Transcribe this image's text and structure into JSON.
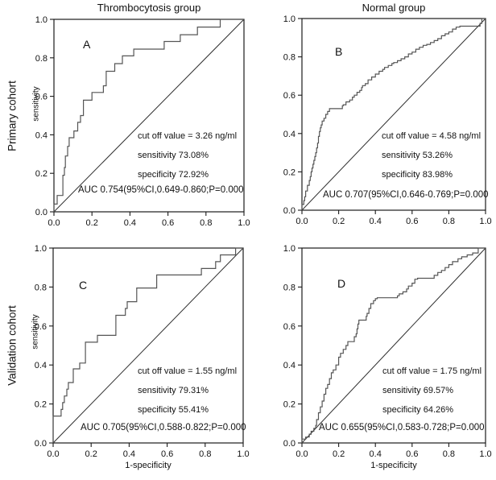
{
  "figure": {
    "column_titles": [
      "Thrombocytosis group",
      "Normal group"
    ],
    "row_labels": [
      "Primary cohort",
      "Validation cohort"
    ],
    "colors": {
      "curve": "#555555",
      "reference_line": "#2e2e2e",
      "axis": "#1a1a1a",
      "text": "#111111",
      "background": "#ffffff"
    }
  },
  "chart_data": [
    {
      "type": "line",
      "panel_label": "A",
      "group": "Thrombocytosis group",
      "cohort": "Primary cohort",
      "xlabel": "",
      "ylabel": "sensitivity",
      "xlim": [
        0,
        1
      ],
      "ylim": [
        0,
        1
      ],
      "xticks": [
        "0.0",
        "0.2",
        "0.4",
        "0.6",
        "0.8",
        "1.0"
      ],
      "yticks": [
        "0.0",
        "0.2",
        "0.4",
        "0.6",
        "0.8",
        "1.0"
      ],
      "grid": false,
      "reference_line": "diagonal",
      "annotations": {
        "cutoff": "cut off value = 3.26 ng/ml",
        "sensitivity": "sensitivity 73.08%",
        "specificity": "specificity 72.92%",
        "auc": "AUC 0.754(95%CI,0.649-0.860;P=0.000"
      },
      "roc_points": [
        [
          0,
          0
        ],
        [
          0.017,
          0.04
        ],
        [
          0.047,
          0.085
        ],
        [
          0.055,
          0.19
        ],
        [
          0.06,
          0.23
        ],
        [
          0.072,
          0.29
        ],
        [
          0.08,
          0.34
        ],
        [
          0.105,
          0.385
        ],
        [
          0.125,
          0.42
        ],
        [
          0.14,
          0.465
        ],
        [
          0.155,
          0.5
        ],
        [
          0.2,
          0.58
        ],
        [
          0.26,
          0.62
        ],
        [
          0.275,
          0.655
        ],
        [
          0.32,
          0.73
        ],
        [
          0.36,
          0.77
        ],
        [
          0.42,
          0.81
        ],
        [
          0.58,
          0.845
        ],
        [
          0.665,
          0.885
        ],
        [
          0.755,
          0.92
        ],
        [
          0.875,
          0.96
        ],
        [
          1,
          1
        ]
      ]
    },
    {
      "type": "line",
      "panel_label": "B",
      "group": "Normal group",
      "cohort": "Primary cohort",
      "xlabel": "",
      "ylabel": "",
      "xlim": [
        0,
        1
      ],
      "ylim": [
        0,
        1
      ],
      "xticks": [
        "0.0",
        "0.2",
        "0.4",
        "0.6",
        "0.8",
        "1.0"
      ],
      "yticks": [
        "0.0",
        "0.2",
        "0.4",
        "0.6",
        "0.8",
        "1.0"
      ],
      "grid": false,
      "reference_line": "diagonal",
      "annotations": {
        "cutoff": "cut off value = 4.58 ng/ml",
        "sensitivity": "sensitivity 53.26%",
        "specificity": "specificity 83.98%",
        "auc": "AUC 0.707(95%CI,0.646-0.769;P=0.000"
      },
      "roc_points": [
        [
          0,
          0
        ],
        [
          0.01,
          0.03
        ],
        [
          0.015,
          0.05
        ],
        [
          0.02,
          0.07
        ],
        [
          0.03,
          0.1
        ],
        [
          0.04,
          0.13
        ],
        [
          0.045,
          0.155
        ],
        [
          0.05,
          0.175
        ],
        [
          0.055,
          0.2
        ],
        [
          0.06,
          0.22
        ],
        [
          0.065,
          0.24
        ],
        [
          0.07,
          0.26
        ],
        [
          0.075,
          0.28
        ],
        [
          0.08,
          0.3
        ],
        [
          0.085,
          0.325
        ],
        [
          0.09,
          0.35
        ],
        [
          0.095,
          0.385
        ],
        [
          0.1,
          0.41
        ],
        [
          0.105,
          0.43
        ],
        [
          0.11,
          0.445
        ],
        [
          0.12,
          0.465
        ],
        [
          0.13,
          0.48
        ],
        [
          0.14,
          0.5
        ],
        [
          0.15,
          0.515
        ],
        [
          0.16,
          0.53
        ],
        [
          0.22,
          0.53
        ],
        [
          0.225,
          0.545
        ],
        [
          0.24,
          0.55
        ],
        [
          0.26,
          0.565
        ],
        [
          0.275,
          0.575
        ],
        [
          0.285,
          0.59
        ],
        [
          0.3,
          0.6
        ],
        [
          0.315,
          0.615
        ],
        [
          0.325,
          0.625
        ],
        [
          0.33,
          0.64
        ],
        [
          0.345,
          0.65
        ],
        [
          0.36,
          0.66
        ],
        [
          0.38,
          0.68
        ],
        [
          0.4,
          0.695
        ],
        [
          0.42,
          0.71
        ],
        [
          0.44,
          0.725
        ],
        [
          0.45,
          0.735
        ],
        [
          0.47,
          0.745
        ],
        [
          0.49,
          0.755
        ],
        [
          0.5,
          0.765
        ],
        [
          0.52,
          0.77
        ],
        [
          0.54,
          0.78
        ],
        [
          0.56,
          0.79
        ],
        [
          0.58,
          0.8
        ],
        [
          0.6,
          0.815
        ],
        [
          0.62,
          0.825
        ],
        [
          0.64,
          0.84
        ],
        [
          0.66,
          0.85
        ],
        [
          0.68,
          0.86
        ],
        [
          0.7,
          0.865
        ],
        [
          0.72,
          0.875
        ],
        [
          0.74,
          0.885
        ],
        [
          0.76,
          0.895
        ],
        [
          0.78,
          0.91
        ],
        [
          0.8,
          0.92
        ],
        [
          0.82,
          0.93
        ],
        [
          0.84,
          0.945
        ],
        [
          0.86,
          0.955
        ],
        [
          0.87,
          0.96
        ],
        [
          0.97,
          0.96
        ],
        [
          0.98,
          0.975
        ],
        [
          1,
          1
        ]
      ]
    },
    {
      "type": "line",
      "panel_label": "C",
      "group": "Thrombocytosis group",
      "cohort": "Validation cohort",
      "xlabel": "1-specificity",
      "ylabel": "sensitivity",
      "xlim": [
        0,
        1
      ],
      "ylim": [
        0,
        1
      ],
      "xticks": [
        "0.0",
        "0.2",
        "0.4",
        "0.6",
        "0.8",
        "1.0"
      ],
      "yticks": [
        "0.0",
        "0.2",
        "0.4",
        "0.6",
        "0.8",
        "1.0"
      ],
      "grid": false,
      "reference_line": "diagonal",
      "annotations": {
        "cutoff": "cut off value = 1.55 ng/ml",
        "sensitivity": "sensitivity 79.31%",
        "specificity": "specificity 55.41%",
        "auc": "AUC 0.705(95%CI,0.588-0.822;P=0.000"
      },
      "roc_points": [
        [
          0,
          0
        ],
        [
          0.042,
          0.138
        ],
        [
          0.05,
          0.172
        ],
        [
          0.059,
          0.207
        ],
        [
          0.072,
          0.241
        ],
        [
          0.08,
          0.276
        ],
        [
          0.106,
          0.31
        ],
        [
          0.14,
          0.38
        ],
        [
          0.17,
          0.41
        ],
        [
          0.233,
          0.517
        ],
        [
          0.33,
          0.552
        ],
        [
          0.38,
          0.655
        ],
        [
          0.39,
          0.69
        ],
        [
          0.44,
          0.725
        ],
        [
          0.545,
          0.795
        ],
        [
          0.78,
          0.862
        ],
        [
          0.855,
          0.895
        ],
        [
          0.88,
          0.93
        ],
        [
          0.96,
          0.965
        ],
        [
          1,
          1
        ]
      ]
    },
    {
      "type": "line",
      "panel_label": "D",
      "group": "Normal group",
      "cohort": "Validation cohort",
      "xlabel": "1-specificity",
      "ylabel": "",
      "xlim": [
        0,
        1
      ],
      "ylim": [
        0,
        1
      ],
      "xticks": [
        "0.0",
        "0.2",
        "0.4",
        "0.6",
        "0.8",
        "1.0"
      ],
      "yticks": [
        "0.0",
        "0.2",
        "0.4",
        "0.6",
        "0.8",
        "1.0"
      ],
      "grid": false,
      "reference_line": "diagonal",
      "annotations": {
        "cutoff": "cut off value = 1.75 ng/ml",
        "sensitivity": "sensitivity 69.57%",
        "specificity": "specificity 64.26%",
        "auc": "AUC 0.655(95%CI,0.583-0.728;P=0.000"
      },
      "roc_points": [
        [
          0,
          0
        ],
        [
          0.02,
          0.02
        ],
        [
          0.04,
          0.03
        ],
        [
          0.05,
          0.045
        ],
        [
          0.065,
          0.06
        ],
        [
          0.075,
          0.075
        ],
        [
          0.08,
          0.09
        ],
        [
          0.09,
          0.12
        ],
        [
          0.1,
          0.155
        ],
        [
          0.11,
          0.185
        ],
        [
          0.12,
          0.215
        ],
        [
          0.13,
          0.25
        ],
        [
          0.14,
          0.28
        ],
        [
          0.15,
          0.3
        ],
        [
          0.16,
          0.33
        ],
        [
          0.17,
          0.36
        ],
        [
          0.185,
          0.375
        ],
        [
          0.2,
          0.4
        ],
        [
          0.21,
          0.44
        ],
        [
          0.225,
          0.46
        ],
        [
          0.24,
          0.48
        ],
        [
          0.25,
          0.5
        ],
        [
          0.285,
          0.52
        ],
        [
          0.295,
          0.545
        ],
        [
          0.3,
          0.56
        ],
        [
          0.305,
          0.585
        ],
        [
          0.31,
          0.61
        ],
        [
          0.35,
          0.63
        ],
        [
          0.355,
          0.65
        ],
        [
          0.365,
          0.665
        ],
        [
          0.375,
          0.69
        ],
        [
          0.39,
          0.715
        ],
        [
          0.4,
          0.73
        ],
        [
          0.41,
          0.74
        ],
        [
          0.52,
          0.745
        ],
        [
          0.53,
          0.755
        ],
        [
          0.55,
          0.765
        ],
        [
          0.57,
          0.775
        ],
        [
          0.58,
          0.79
        ],
        [
          0.6,
          0.805
        ],
        [
          0.615,
          0.82
        ],
        [
          0.63,
          0.84
        ],
        [
          0.72,
          0.845
        ],
        [
          0.74,
          0.86
        ],
        [
          0.76,
          0.875
        ],
        [
          0.78,
          0.885
        ],
        [
          0.8,
          0.9
        ],
        [
          0.82,
          0.915
        ],
        [
          0.85,
          0.93
        ],
        [
          0.87,
          0.945
        ],
        [
          0.9,
          0.955
        ],
        [
          0.93,
          0.965
        ],
        [
          0.96,
          0.975
        ],
        [
          1,
          1
        ]
      ]
    }
  ]
}
